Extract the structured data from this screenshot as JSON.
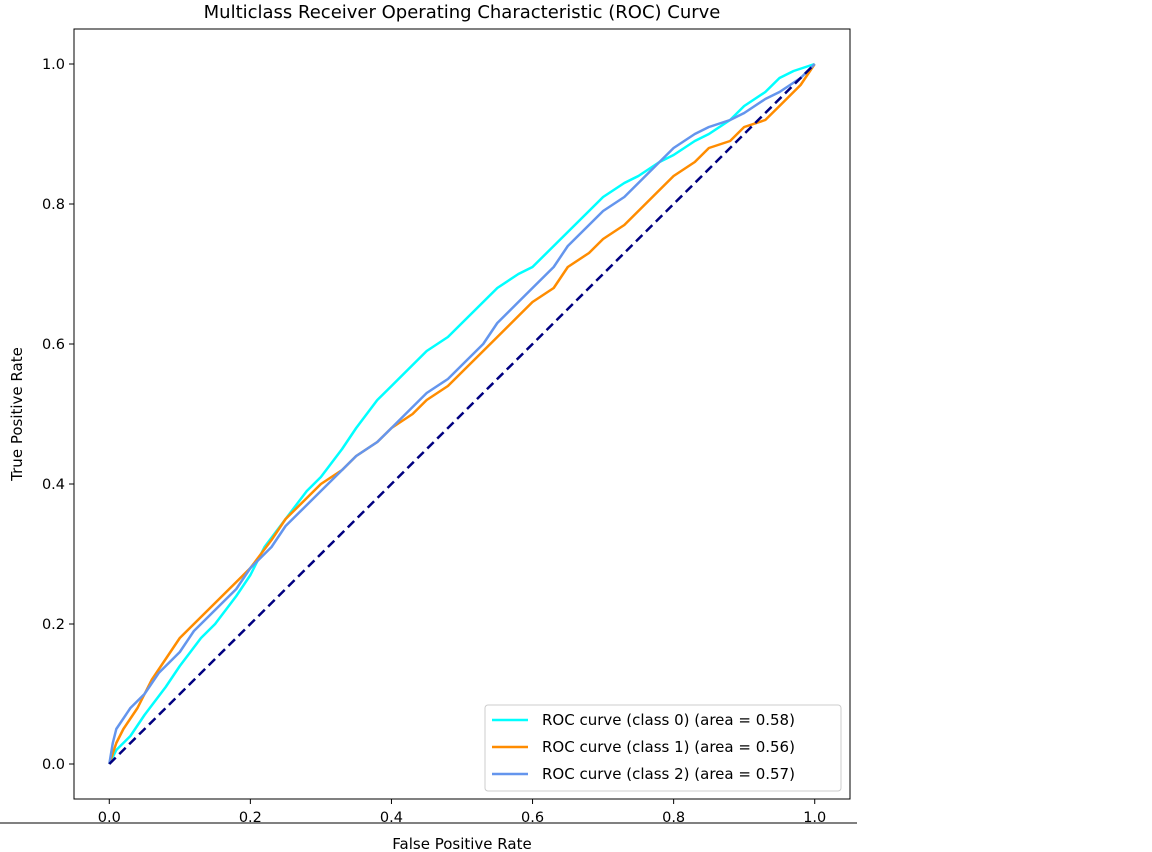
{
  "chart_data": {
    "type": "line",
    "title": "Multiclass Receiver Operating Characteristic (ROC) Curve",
    "xlabel": "False Positive Rate",
    "ylabel": "True Positive Rate",
    "xlim": [
      -0.05,
      1.05
    ],
    "ylim": [
      -0.05,
      1.05
    ],
    "xticks": [
      0.0,
      0.2,
      0.4,
      0.6,
      0.8,
      1.0
    ],
    "yticks": [
      0.0,
      0.2,
      0.4,
      0.6,
      0.8,
      1.0
    ],
    "xtick_labels": [
      "0.0",
      "0.2",
      "0.4",
      "0.6",
      "0.8",
      "1.0"
    ],
    "ytick_labels": [
      "0.0",
      "0.2",
      "0.4",
      "0.6",
      "0.8",
      "1.0"
    ],
    "grid": false,
    "legend_position": "lower-right",
    "series": [
      {
        "name": "ROC curve (class 0) (area = 0.58)",
        "color": "#00ffff",
        "x": [
          0.0,
          0.01,
          0.03,
          0.05,
          0.08,
          0.1,
          0.13,
          0.15,
          0.18,
          0.2,
          0.22,
          0.25,
          0.28,
          0.3,
          0.33,
          0.35,
          0.38,
          0.4,
          0.43,
          0.45,
          0.48,
          0.5,
          0.53,
          0.55,
          0.58,
          0.6,
          0.63,
          0.65,
          0.68,
          0.7,
          0.73,
          0.75,
          0.78,
          0.8,
          0.83,
          0.85,
          0.88,
          0.9,
          0.93,
          0.95,
          0.97,
          1.0
        ],
        "y": [
          0.0,
          0.02,
          0.04,
          0.07,
          0.11,
          0.14,
          0.18,
          0.2,
          0.24,
          0.27,
          0.31,
          0.35,
          0.39,
          0.41,
          0.45,
          0.48,
          0.52,
          0.54,
          0.57,
          0.59,
          0.61,
          0.63,
          0.66,
          0.68,
          0.7,
          0.71,
          0.74,
          0.76,
          0.79,
          0.81,
          0.83,
          0.84,
          0.86,
          0.87,
          0.89,
          0.9,
          0.92,
          0.94,
          0.96,
          0.98,
          0.99,
          1.0
        ]
      },
      {
        "name": "ROC curve (class 1) (area = 0.56)",
        "color": "#ff8c00",
        "x": [
          0.0,
          0.01,
          0.02,
          0.04,
          0.06,
          0.08,
          0.1,
          0.12,
          0.15,
          0.18,
          0.2,
          0.23,
          0.25,
          0.28,
          0.3,
          0.33,
          0.35,
          0.38,
          0.4,
          0.43,
          0.45,
          0.48,
          0.5,
          0.53,
          0.55,
          0.58,
          0.6,
          0.63,
          0.65,
          0.68,
          0.7,
          0.73,
          0.75,
          0.78,
          0.8,
          0.83,
          0.85,
          0.88,
          0.9,
          0.93,
          0.95,
          0.98,
          1.0
        ],
        "y": [
          0.0,
          0.03,
          0.05,
          0.08,
          0.12,
          0.15,
          0.18,
          0.2,
          0.23,
          0.26,
          0.28,
          0.32,
          0.35,
          0.38,
          0.4,
          0.42,
          0.44,
          0.46,
          0.48,
          0.5,
          0.52,
          0.54,
          0.56,
          0.59,
          0.61,
          0.64,
          0.66,
          0.68,
          0.71,
          0.73,
          0.75,
          0.77,
          0.79,
          0.82,
          0.84,
          0.86,
          0.88,
          0.89,
          0.91,
          0.92,
          0.94,
          0.97,
          1.0
        ]
      },
      {
        "name": "ROC curve (class 2) (area = 0.57)",
        "color": "#6495ed",
        "x": [
          0.0,
          0.005,
          0.01,
          0.03,
          0.05,
          0.07,
          0.1,
          0.12,
          0.15,
          0.18,
          0.2,
          0.23,
          0.25,
          0.28,
          0.3,
          0.33,
          0.35,
          0.38,
          0.4,
          0.43,
          0.45,
          0.48,
          0.5,
          0.53,
          0.55,
          0.58,
          0.6,
          0.63,
          0.65,
          0.68,
          0.7,
          0.73,
          0.75,
          0.78,
          0.8,
          0.83,
          0.85,
          0.88,
          0.9,
          0.93,
          0.95,
          0.98,
          1.0
        ],
        "y": [
          0.0,
          0.03,
          0.05,
          0.08,
          0.1,
          0.13,
          0.16,
          0.19,
          0.22,
          0.25,
          0.28,
          0.31,
          0.34,
          0.37,
          0.39,
          0.42,
          0.44,
          0.46,
          0.48,
          0.51,
          0.53,
          0.55,
          0.57,
          0.6,
          0.63,
          0.66,
          0.68,
          0.71,
          0.74,
          0.77,
          0.79,
          0.81,
          0.83,
          0.86,
          0.88,
          0.9,
          0.91,
          0.92,
          0.93,
          0.95,
          0.96,
          0.98,
          1.0
        ]
      },
      {
        "name": "",
        "color": "#000080",
        "style": "dashed",
        "x": [
          0.0,
          1.0
        ],
        "y": [
          0.0,
          1.0
        ]
      }
    ]
  }
}
